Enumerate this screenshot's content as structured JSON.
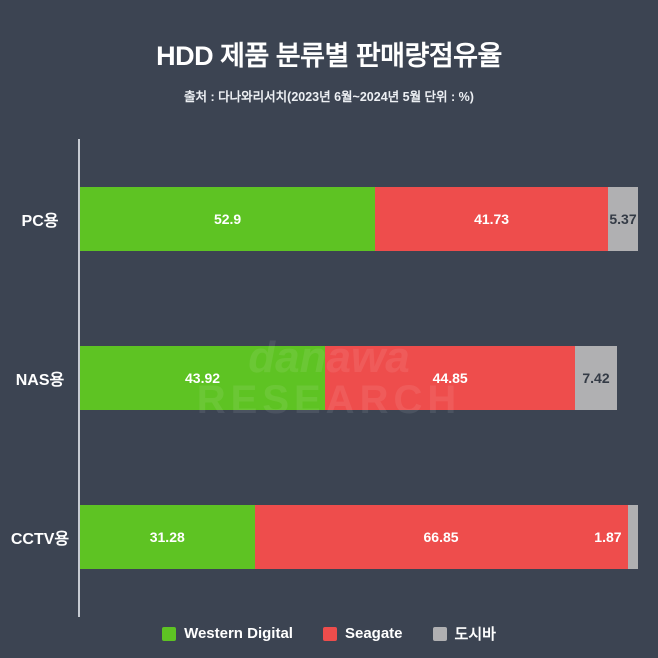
{
  "title": "HDD 제품 분류별 판매량점유율",
  "subtitle": "출처 : 다나와리서치(2023년 6월~2024년 5월 단위 : %)",
  "watermark": {
    "line1": "danawa",
    "line2": "RESEARCH"
  },
  "colors": {
    "background": "#3c4452",
    "axis": "#c6cbd2",
    "green": "#5ec323",
    "red": "#ee4d4c",
    "gray": "#b0b0b2"
  },
  "chart_data": {
    "type": "bar",
    "orientation": "horizontal",
    "stacked": true,
    "unit": "%",
    "xlim": [
      0,
      100
    ],
    "grid": false,
    "legend_position": "bottom",
    "categories": [
      "PC용",
      "NAS용",
      "CCTV용"
    ],
    "series": [
      {
        "name": "Western Digital",
        "key": "western-digital",
        "color": "#5ec323",
        "label_color": "#ffffff",
        "values": [
          52.9,
          43.92,
          31.28
        ]
      },
      {
        "name": "Seagate",
        "key": "seagate",
        "color": "#ee4d4c",
        "label_color": "#ffffff",
        "values": [
          41.73,
          44.85,
          66.85
        ]
      },
      {
        "name": "도시바",
        "key": "toshiba",
        "color": "#b0b0b2",
        "label_color": "#343b46",
        "values": [
          5.37,
          7.42,
          1.87
        ]
      }
    ]
  }
}
